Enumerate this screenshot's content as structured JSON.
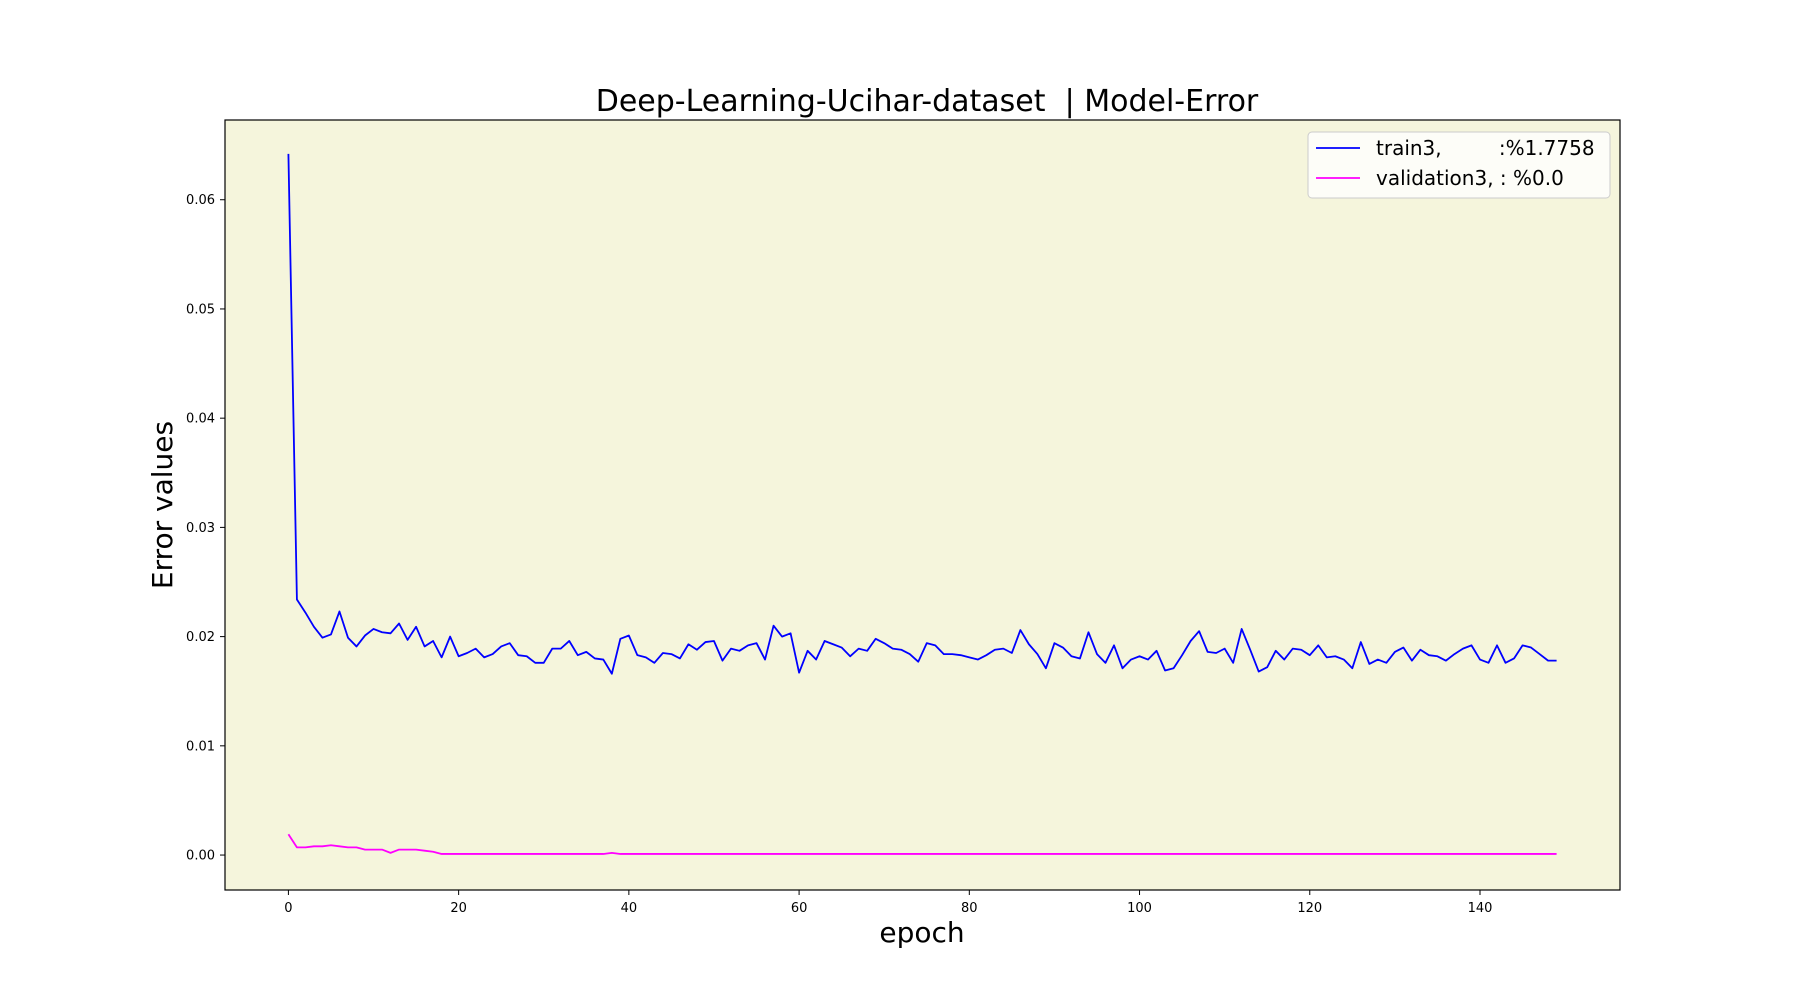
{
  "chart_data": {
    "type": "line",
    "title": "Deep-Learning-Ucihar-dataset  | Model-Error",
    "xlabel": "epoch",
    "ylabel": "Error values",
    "xlim": [
      -7.45,
      156.45
    ],
    "ylim": [
      -0.0032,
      0.0673
    ],
    "xticks": [
      0,
      20,
      40,
      60,
      80,
      100,
      120,
      140
    ],
    "yticks": [
      0.0,
      0.01,
      0.02,
      0.03,
      0.04,
      0.05,
      0.06
    ],
    "ytick_labels": [
      "0.00",
      "0.01",
      "0.02",
      "0.03",
      "0.04",
      "0.05",
      "0.06"
    ],
    "background_color": "#f5f5dc",
    "legend_position": "top-right",
    "grid": false,
    "series": [
      {
        "name": "train3,         :%1.7758",
        "color": "#0000ff",
        "values": [
          0.0642,
          0.0234,
          0.0222,
          0.0209,
          0.0199,
          0.0202,
          0.0223,
          0.0199,
          0.0191,
          0.0201,
          0.0207,
          0.0204,
          0.0203,
          0.0212,
          0.0197,
          0.0209,
          0.0191,
          0.0196,
          0.0181,
          0.02,
          0.0182,
          0.0185,
          0.0189,
          0.0181,
          0.0184,
          0.0191,
          0.0194,
          0.0183,
          0.0182,
          0.0176,
          0.0176,
          0.0189,
          0.0189,
          0.0196,
          0.0183,
          0.0186,
          0.018,
          0.0179,
          0.0166,
          0.0198,
          0.0201,
          0.0183,
          0.0181,
          0.0176,
          0.0185,
          0.0184,
          0.018,
          0.0193,
          0.0188,
          0.0195,
          0.0196,
          0.0178,
          0.0189,
          0.0187,
          0.0192,
          0.0194,
          0.0179,
          0.021,
          0.02,
          0.0203,
          0.0167,
          0.0187,
          0.0179,
          0.0196,
          0.0193,
          0.019,
          0.0182,
          0.0189,
          0.0187,
          0.0198,
          0.0194,
          0.0189,
          0.0188,
          0.0184,
          0.0177,
          0.0194,
          0.0192,
          0.0184,
          0.0184,
          0.0183,
          0.0181,
          0.0179,
          0.0183,
          0.0188,
          0.0189,
          0.0185,
          0.0206,
          0.0193,
          0.0184,
          0.0171,
          0.0194,
          0.019,
          0.0182,
          0.018,
          0.0204,
          0.0184,
          0.0176,
          0.0192,
          0.0171,
          0.0179,
          0.0182,
          0.0179,
          0.0187,
          0.0169,
          0.0171,
          0.0183,
          0.0196,
          0.0205,
          0.0186,
          0.0185,
          0.0189,
          0.0176,
          0.0207,
          0.0188,
          0.0168,
          0.0172,
          0.0187,
          0.0179,
          0.0189,
          0.0188,
          0.0183,
          0.0192,
          0.0181,
          0.0182,
          0.0179,
          0.0171,
          0.0195,
          0.0175,
          0.0179,
          0.0176,
          0.0186,
          0.019,
          0.0178,
          0.0188,
          0.0183,
          0.0182,
          0.0178,
          0.0184,
          0.0189,
          0.0192,
          0.0179,
          0.0176,
          0.0192,
          0.0176,
          0.018,
          0.0192,
          0.019,
          0.0184,
          0.0178,
          0.0178
        ]
      },
      {
        "name": "validation3, : %0.0",
        "color": "#ff00ff",
        "values": [
          0.0019,
          0.0007,
          0.0007,
          0.0008,
          0.0008,
          0.0009,
          0.0008,
          0.0007,
          0.0007,
          0.0005,
          0.0005,
          0.0005,
          0.0002,
          0.0005,
          0.0005,
          0.0005,
          0.0004,
          0.0003,
          0.0001,
          0.0001,
          0.0001,
          0.0001,
          0.0001,
          0.0001,
          0.0001,
          0.0001,
          0.0001,
          0.0001,
          0.0001,
          0.0001,
          0.0001,
          0.0001,
          0.0001,
          0.0001,
          0.0001,
          0.0001,
          0.0001,
          0.0001,
          0.0002,
          0.0001,
          0.0001,
          0.0001,
          0.0001,
          0.0001,
          0.0001,
          0.0001,
          0.0001,
          0.0001,
          0.0001,
          0.0001,
          0.0001,
          0.0001,
          0.0001,
          0.0001,
          0.0001,
          0.0001,
          0.0001,
          0.0001,
          0.0001,
          0.0001,
          0.0001,
          0.0001,
          0.0001,
          0.0001,
          0.0001,
          0.0001,
          0.0001,
          0.0001,
          0.0001,
          0.0001,
          0.0001,
          0.0001,
          0.0001,
          0.0001,
          0.0001,
          0.0001,
          0.0001,
          0.0001,
          0.0001,
          0.0001,
          0.0001,
          0.0001,
          0.0001,
          0.0001,
          0.0001,
          0.0001,
          0.0001,
          0.0001,
          0.0001,
          0.0001,
          0.0001,
          0.0001,
          0.0001,
          0.0001,
          0.0001,
          0.0001,
          0.0001,
          0.0001,
          0.0001,
          0.0001,
          0.0001,
          0.0001,
          0.0001,
          0.0001,
          0.0001,
          0.0001,
          0.0001,
          0.0001,
          0.0001,
          0.0001,
          0.0001,
          0.0001,
          0.0001,
          0.0001,
          0.0001,
          0.0001,
          0.0001,
          0.0001,
          0.0001,
          0.0001,
          0.0001,
          0.0001,
          0.0001,
          0.0001,
          0.0001,
          0.0001,
          0.0001,
          0.0001,
          0.0001,
          0.0001,
          0.0001,
          0.0001,
          0.0001,
          0.0001,
          0.0001,
          0.0001,
          0.0001,
          0.0001,
          0.0001,
          0.0001,
          0.0001,
          0.0001,
          0.0001,
          0.0001,
          0.0001,
          0.0001,
          0.0001,
          0.0001,
          0.0001,
          0.0001
        ]
      }
    ]
  }
}
